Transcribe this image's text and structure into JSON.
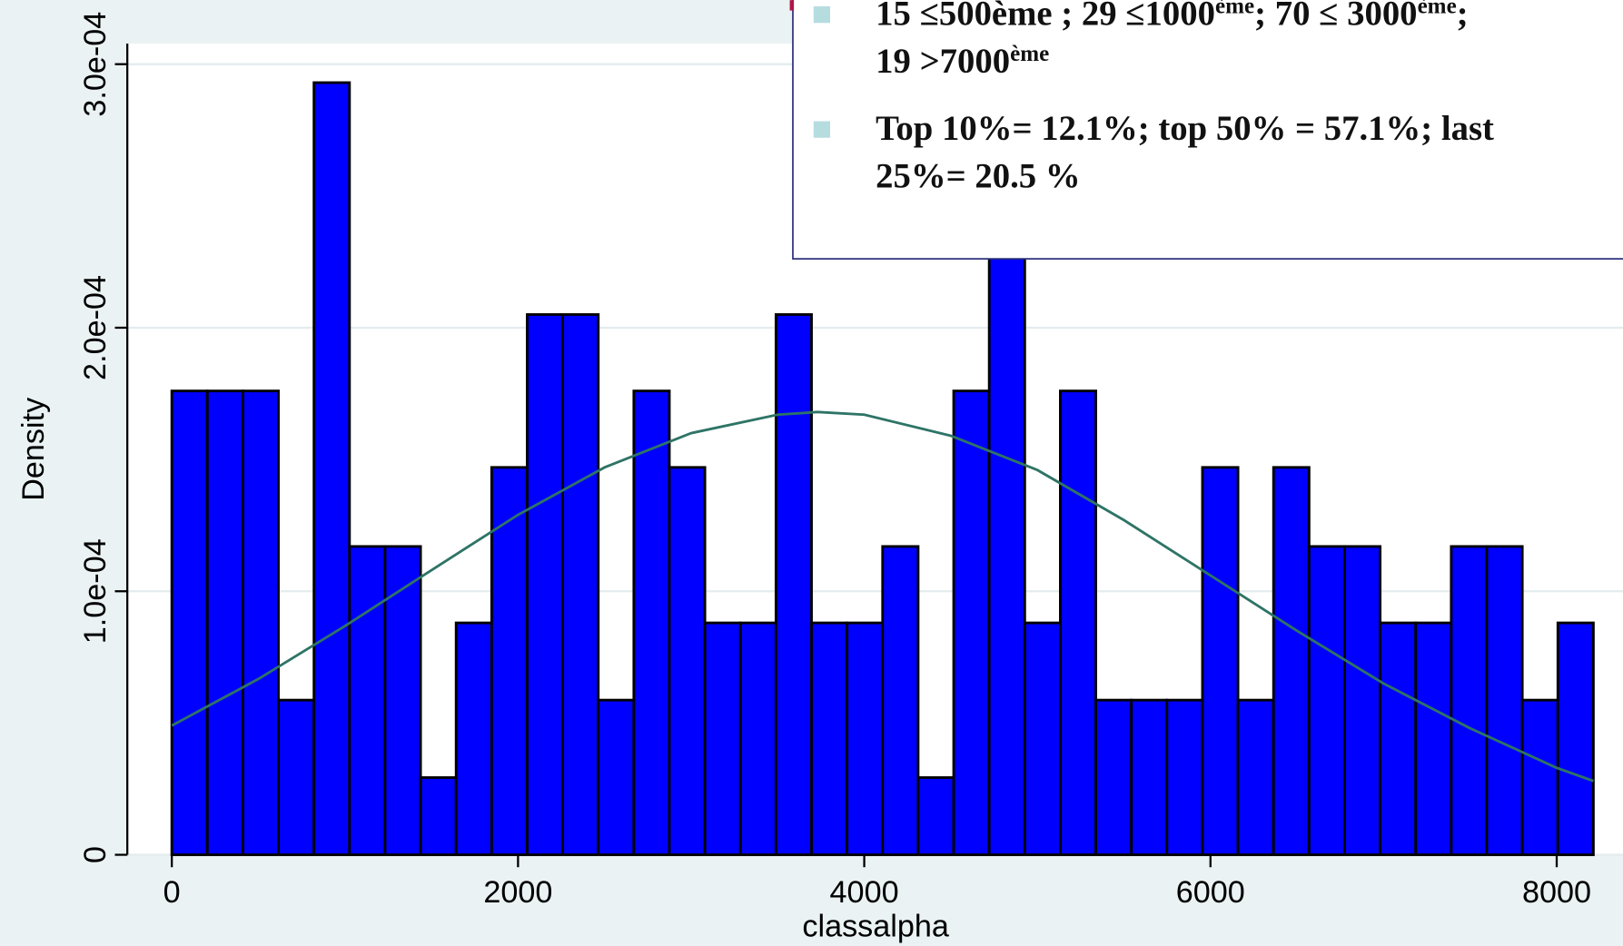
{
  "chart_data": {
    "type": "histogram",
    "bins": [
      0,
      205.3,
      410.6,
      615.9,
      821.2,
      1026.5,
      1231.8,
      1437.1,
      1642.4,
      1847.7,
      2053,
      2258.3,
      2463.6,
      2668.9,
      2874.2,
      3079.5,
      3284.8,
      3490.1,
      3695.4,
      3900.7,
      4106,
      4311.3,
      4516.6,
      4721.9,
      4927.2,
      5132.5,
      5337.8,
      5543.1,
      5748.4,
      5953.7,
      6159,
      6364.3,
      6569.6,
      6774.9,
      6980.2,
      7185.5,
      7390.8,
      7596.1,
      7801.4,
      8006.7,
      8212
    ],
    "values": [
      0.000176,
      0.000176,
      0.000176,
      5.87e-05,
      0.000293,
      0.000117,
      0.000117,
      2.93e-05,
      8.8e-05,
      0.000147,
      0.000205,
      0.000205,
      5.87e-05,
      0.000176,
      0.000147,
      8.8e-05,
      8.8e-05,
      0.000205,
      8.8e-05,
      8.8e-05,
      0.000117,
      2.93e-05,
      0.000176,
      0.000235,
      8.8e-05,
      0.000176,
      5.87e-05,
      5.87e-05,
      5.87e-05,
      0.000147,
      5.87e-05,
      0.000147,
      0.000117,
      0.000117,
      8.8e-05,
      8.8e-05,
      0.000117,
      0.000117,
      5.87e-05,
      8.8e-05
    ],
    "color": "#0000ff",
    "curve": {
      "color": "#2e7466",
      "x": [
        0,
        500,
        1000,
        1500,
        2000,
        2500,
        3000,
        3500,
        3730,
        4000,
        4500,
        5000,
        5500,
        6000,
        6500,
        7000,
        7500,
        8000,
        8212
      ],
      "values": [
        4.9e-05,
        6.67e-05,
        8.68e-05,
        0.000108,
        0.000129,
        0.000147,
        0.00016,
        0.000167,
        0.000168,
        0.000167,
        0.000159,
        0.000146,
        0.000127,
        0.000106,
        8.5e-05,
        6.5e-05,
        4.8e-05,
        3.3e-05,
        2.8e-05
      ]
    },
    "x_label": "classalpha",
    "y_label": "Density",
    "xlim": [
      -257,
      8383
    ],
    "ylim": [
      0,
      0.0003078
    ],
    "xticks": [
      0,
      2000,
      4000,
      6000,
      8000
    ],
    "yticks": [
      0,
      {
        "value": 0.0001,
        "label": "1.0e-04"
      },
      {
        "value": 0.0002,
        "label": "2.0e-04"
      },
      {
        "value": 0.0003,
        "label": "3.0e-04"
      }
    ],
    "grid": true,
    "annotations": [
      [
        [
          "15 ≤500ème ; 29 ≤1000",
          "ème",
          "; 70 ≤ 3000",
          "ème",
          ";"
        ],
        [
          "19 >7000",
          "ème"
        ]
      ],
      [
        [
          "Top 10%= 12.1%; top 50% = 57.1%; last"
        ],
        [
          "25%= 20.5 %"
        ]
      ]
    ]
  }
}
